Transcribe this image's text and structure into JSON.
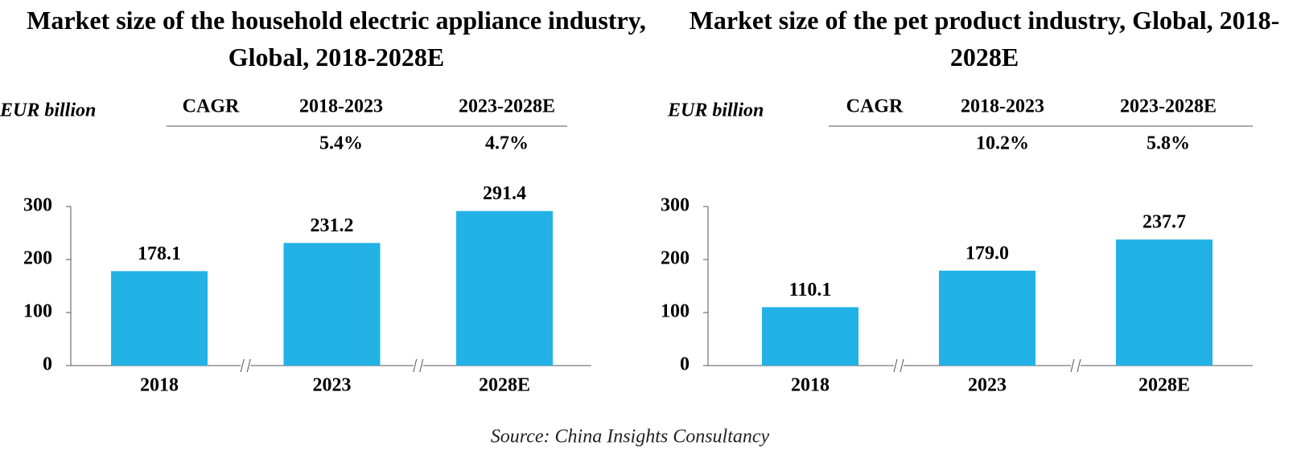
{
  "chart_data": [
    {
      "type": "bar",
      "title": "Market size of the household electric appliance industry, Global, 2018-2028E",
      "unit": "EUR billion",
      "cagr": {
        "header": "CAGR",
        "periods": [
          "2018-2023",
          "2023-2028E"
        ],
        "values": [
          "5.4%",
          "4.7%"
        ]
      },
      "categories": [
        "2018",
        "2023",
        "2028E"
      ],
      "values": [
        178.1,
        231.2,
        291.4
      ],
      "color": "#22b2e6",
      "ylim": [
        0,
        300
      ],
      "yticks": [
        0,
        100,
        200,
        300
      ]
    },
    {
      "type": "bar",
      "title": "Market size of the pet product industry, Global, 2018-2028E",
      "unit": "EUR billion",
      "cagr": {
        "header": "CAGR",
        "periods": [
          "2018-2023",
          "2023-2028E"
        ],
        "values": [
          "10.2%",
          "5.8%"
        ]
      },
      "categories": [
        "2018",
        "2023",
        "2028E"
      ],
      "values": [
        110.1,
        179.0,
        237.7
      ],
      "value_labels": [
        "110.1",
        "179.0",
        "237.7"
      ],
      "color": "#22b2e6",
      "ylim": [
        0,
        300
      ],
      "yticks": [
        0,
        100,
        200,
        300
      ]
    }
  ],
  "source": "Source: China Insights Consultancy"
}
